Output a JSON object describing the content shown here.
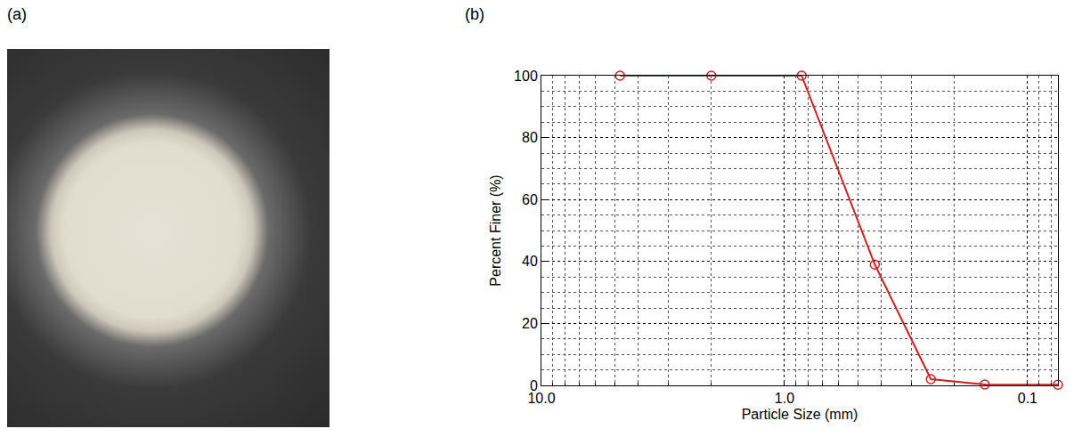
{
  "panel_labels": [
    "(a)",
    "(b)"
  ],
  "chart_data": {
    "type": "line",
    "x": [
      4.75,
      2.0,
      0.85,
      0.425,
      0.25,
      0.15,
      0.075
    ],
    "values": [
      100,
      100,
      100,
      39,
      2,
      0.3,
      0.2
    ],
    "color": "#d42020",
    "marker": "circle-open",
    "line_style": "solid",
    "xlabel": "Particle Size (mm)",
    "ylabel": "Percent Finer (%)",
    "log": "x",
    "xlim": [
      10,
      0.075
    ],
    "xticks": [
      {
        "value": 10,
        "label": "10.0"
      },
      {
        "value": 1,
        "label": "1.0"
      },
      {
        "value": 0.1,
        "label": "0.1"
      }
    ],
    "ylim": [
      0,
      100
    ],
    "yticks": [
      0,
      20,
      40,
      60,
      80,
      100
    ],
    "grid": true
  }
}
